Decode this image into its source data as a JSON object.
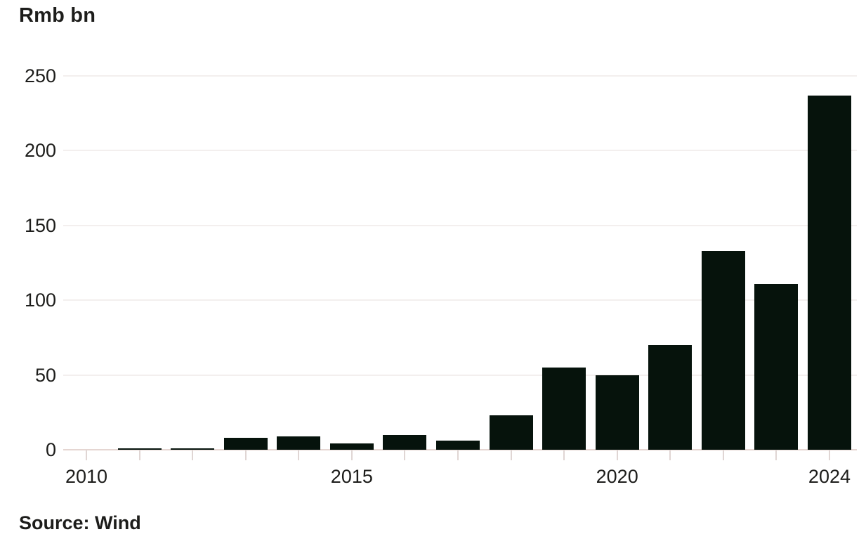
{
  "unit_label": "Rmb bn",
  "source_note": "Source: Wind",
  "colors": {
    "bar": "#06130c",
    "zero_axis": "#e5d6d2",
    "gridline": "#f3efee",
    "tick": "#e0d6d4",
    "text": "#1d1d1b",
    "background": "#ffffff"
  },
  "chart_data": {
    "type": "bar",
    "title": "",
    "ylabel": "Rmb bn",
    "xlabel": "",
    "categories": [
      2010,
      2011,
      2012,
      2013,
      2014,
      2015,
      2016,
      2017,
      2018,
      2019,
      2020,
      2021,
      2022,
      2023,
      2024
    ],
    "values": [
      0,
      1,
      1,
      8,
      9,
      4,
      10,
      6,
      23,
      55,
      50,
      70,
      133,
      111,
      237
    ],
    "yticks": [
      0,
      50,
      100,
      150,
      200,
      250
    ],
    "ylim": [
      0,
      250
    ],
    "xtick_labels_shown": [
      "2010",
      "2015",
      "2020",
      "2024"
    ],
    "grid": "horizontal light gridlines at every 50",
    "legend": "none",
    "source": "Source: Wind"
  }
}
